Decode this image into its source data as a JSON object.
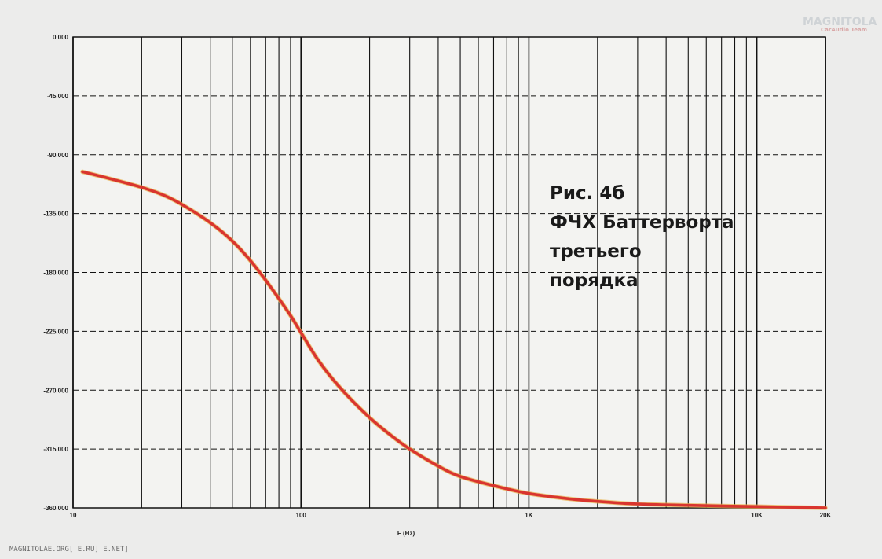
{
  "chart_data": {
    "type": "line",
    "title": "",
    "caption": "Рис. 4б\nФЧХ Баттерворта\nтретьего\nпорядка",
    "xlabel": "F (Hz)",
    "ylabel": "",
    "x_scale": "log",
    "xlim": [
      10,
      20000
    ],
    "ylim": [
      -360,
      0
    ],
    "grid": true,
    "y_ticks": [
      0,
      -45,
      -90,
      -135,
      -180,
      -225,
      -270,
      -315,
      -360
    ],
    "y_tick_labels": [
      "0.000",
      "-45.000",
      "-90.000",
      "-135.000",
      "-180.000",
      "-225.000",
      "-270.000",
      "-315.000",
      "-360.000"
    ],
    "x_ticks": [
      10,
      100,
      1000,
      10000,
      20000
    ],
    "x_tick_labels": [
      "10",
      "100",
      "1K",
      "10K",
      "20K"
    ],
    "series": [
      {
        "name": "",
        "color": "#d9352f",
        "points": [
          [
            11,
            -103
          ],
          [
            15,
            -109
          ],
          [
            20,
            -115
          ],
          [
            25,
            -121
          ],
          [
            30,
            -128
          ],
          [
            40,
            -142
          ],
          [
            50,
            -156
          ],
          [
            60,
            -171
          ],
          [
            70,
            -186
          ],
          [
            80,
            -200
          ],
          [
            90,
            -213
          ],
          [
            100,
            -226
          ],
          [
            120,
            -248
          ],
          [
            150,
            -269
          ],
          [
            200,
            -291
          ],
          [
            250,
            -305
          ],
          [
            300,
            -315
          ],
          [
            400,
            -328
          ],
          [
            500,
            -336
          ],
          [
            700,
            -343
          ],
          [
            1000,
            -349
          ],
          [
            1500,
            -353
          ],
          [
            2000,
            -355
          ],
          [
            3000,
            -357
          ],
          [
            5000,
            -358
          ],
          [
            10000,
            -359
          ],
          [
            20000,
            -360
          ]
        ]
      }
    ]
  },
  "watermark": "MAGNITOLAE.ORG[ E.RU] E.NET]",
  "logo": {
    "main": "MAGNITOLA",
    "sub": "CarAudio Team"
  }
}
